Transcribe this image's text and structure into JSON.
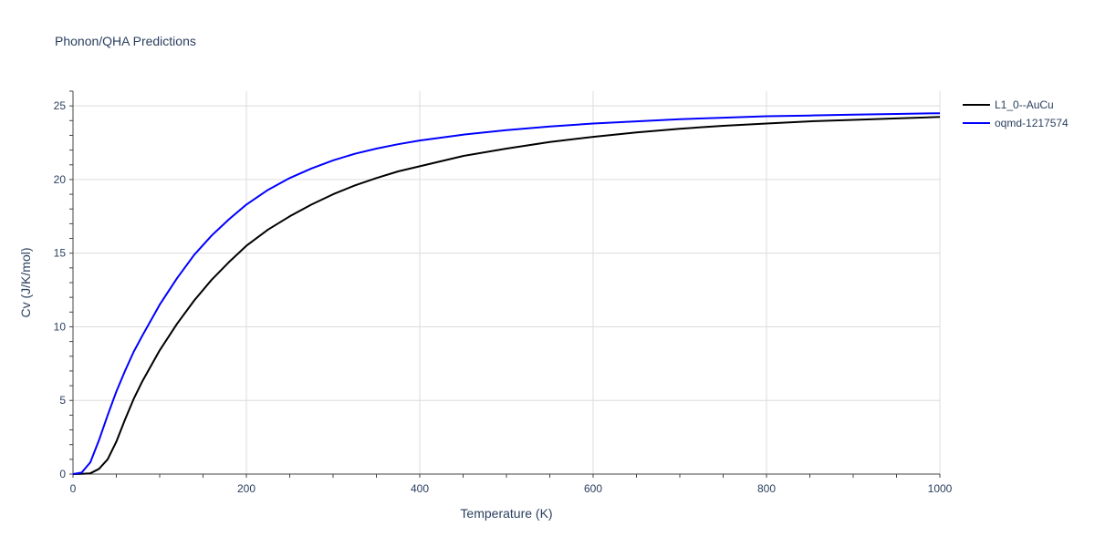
{
  "chart_data": {
    "type": "line",
    "title": "Phonon/QHA Predictions",
    "xlabel": "Temperature (K)",
    "ylabel": "Cv (J/K/mol)",
    "xlim": [
      0,
      1000
    ],
    "ylim": [
      0,
      26
    ],
    "x_ticks": [
      0,
      200,
      400,
      600,
      800,
      1000
    ],
    "y_ticks": [
      0,
      5,
      10,
      15,
      20,
      25
    ],
    "grid": true,
    "legend_position": "top-right",
    "series": [
      {
        "name": "L1_0--AuCu",
        "color": "#000000",
        "x": [
          0,
          10,
          20,
          30,
          40,
          50,
          60,
          70,
          80,
          100,
          120,
          140,
          160,
          180,
          200,
          225,
          250,
          275,
          300,
          325,
          350,
          375,
          400,
          450,
          500,
          550,
          600,
          650,
          700,
          750,
          800,
          850,
          900,
          950,
          1000
        ],
        "y": [
          0,
          0.02,
          0.05,
          0.35,
          1.0,
          2.2,
          3.7,
          5.1,
          6.3,
          8.4,
          10.2,
          11.8,
          13.2,
          14.4,
          15.5,
          16.6,
          17.5,
          18.3,
          19.0,
          19.6,
          20.1,
          20.55,
          20.9,
          21.6,
          22.1,
          22.55,
          22.9,
          23.2,
          23.45,
          23.65,
          23.8,
          23.95,
          24.05,
          24.15,
          24.25
        ]
      },
      {
        "name": "oqmd-1217574",
        "color": "#0000ff",
        "x": [
          0,
          10,
          20,
          30,
          40,
          50,
          60,
          70,
          80,
          100,
          120,
          140,
          160,
          180,
          200,
          225,
          250,
          275,
          300,
          325,
          350,
          375,
          400,
          450,
          500,
          550,
          600,
          650,
          700,
          750,
          800,
          850,
          900,
          950,
          1000
        ],
        "y": [
          0,
          0.1,
          0.8,
          2.3,
          4.0,
          5.6,
          7.0,
          8.3,
          9.4,
          11.5,
          13.3,
          14.9,
          16.2,
          17.3,
          18.3,
          19.3,
          20.1,
          20.75,
          21.3,
          21.75,
          22.1,
          22.4,
          22.65,
          23.05,
          23.35,
          23.6,
          23.8,
          23.95,
          24.1,
          24.2,
          24.3,
          24.35,
          24.4,
          24.45,
          24.5
        ]
      }
    ]
  }
}
